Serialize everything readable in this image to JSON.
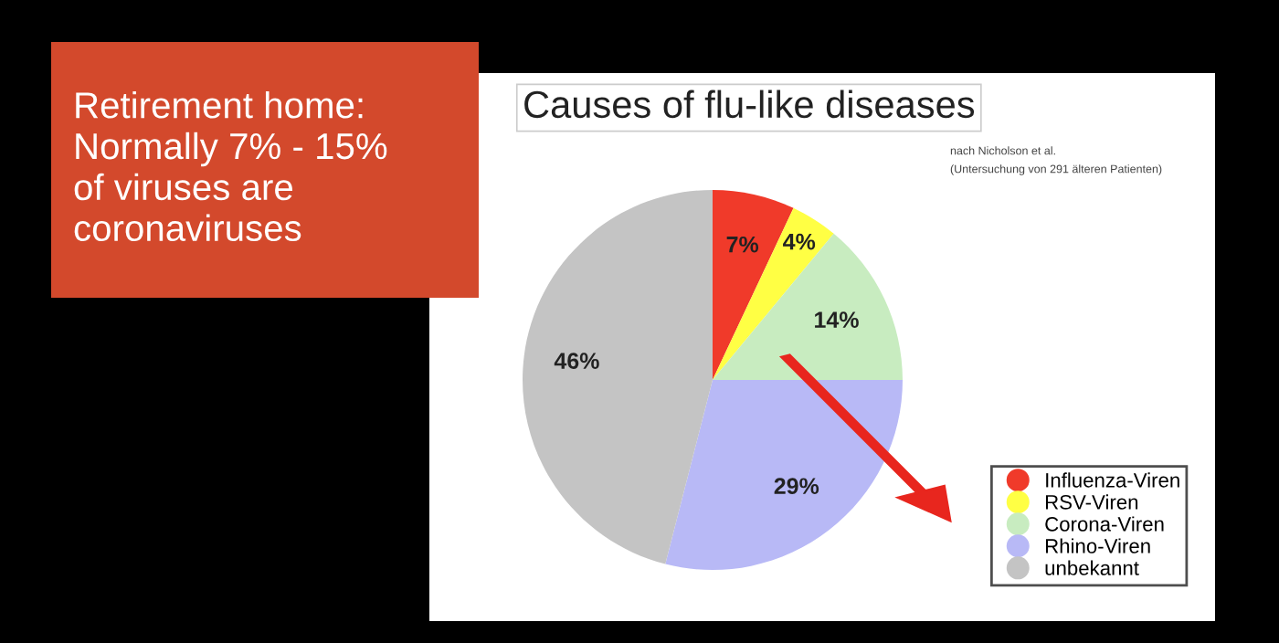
{
  "chart_data": {
    "type": "pie",
    "title": "Causes of flu-like diseases",
    "categories": [
      "Influenza-Viren",
      "RSV-Viren",
      "Corona-Viren",
      "Rhino-Viren",
      "unbekannt"
    ],
    "values": [
      7,
      4,
      14,
      29,
      46
    ],
    "colors": [
      "#f03a2a",
      "#ffff44",
      "#c8ecc0",
      "#b8b9f6",
      "#c4c4c4"
    ],
    "value_labels": [
      "7%",
      "4%",
      "14%",
      "29%",
      "46%"
    ],
    "legend": "bottom right",
    "annotations": [
      "Retirement home:\nNormally 7% - 15%\nof viruses are\ncoronaviruses",
      "nach Nicholson et al.",
      "(Untersuchung von 291 älteren Patienten)"
    ]
  }
}
